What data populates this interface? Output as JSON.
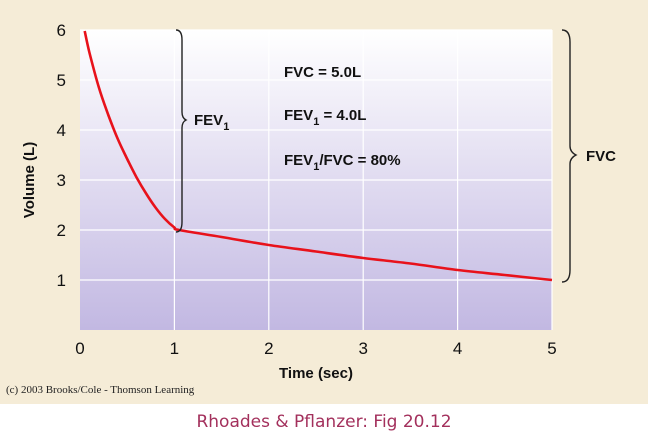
{
  "chart_data": {
    "type": "line",
    "xlabel": "Time (sec)",
    "ylabel": "Volume (L)",
    "xlim": [
      0,
      5
    ],
    "ylim": [
      0,
      6
    ],
    "x_ticks": [
      "0",
      "1",
      "2",
      "3",
      "4",
      "5"
    ],
    "y_ticks": [
      "1",
      "2",
      "3",
      "4",
      "5",
      "6"
    ],
    "grid": true,
    "series": [
      {
        "color": "#e8121b",
        "x": [
          0.05,
          0.1,
          0.2,
          0.3,
          0.4,
          0.5,
          0.6,
          0.7,
          0.8,
          0.9,
          1.0,
          1.05,
          1.5,
          2.0,
          2.5,
          3.0,
          3.5,
          4.0,
          4.5,
          5.0
        ],
        "y": [
          5.98,
          5.55,
          4.85,
          4.3,
          3.82,
          3.42,
          3.05,
          2.73,
          2.45,
          2.22,
          2.05,
          2.0,
          1.86,
          1.7,
          1.57,
          1.44,
          1.33,
          1.2,
          1.1,
          1.0
        ]
      }
    ],
    "annotations": {
      "fev1_label": "FEV",
      "fev1_subscript": "1",
      "fvc_label": "FVC",
      "line1_text": "FVC = 5.0L",
      "line2_prefix": "FEV",
      "line2_subscript": "1",
      "line2_suffix": " = 4.0L",
      "line3_prefix": "FEV",
      "line3_subscript": "1",
      "line3_suffix": "/FVC = 80%"
    }
  },
  "copyright": "(c) 2003 Brooks/Cole - Thomson Learning",
  "caption": "Rhoades & Pflanzer: Fig 20.12",
  "colors": {
    "curve": "#e8121b",
    "plot_background_top": "#ffffff",
    "plot_background_bottom": "#c2b8e2",
    "panel": "#f5ecd7",
    "caption": "#a3305c"
  }
}
